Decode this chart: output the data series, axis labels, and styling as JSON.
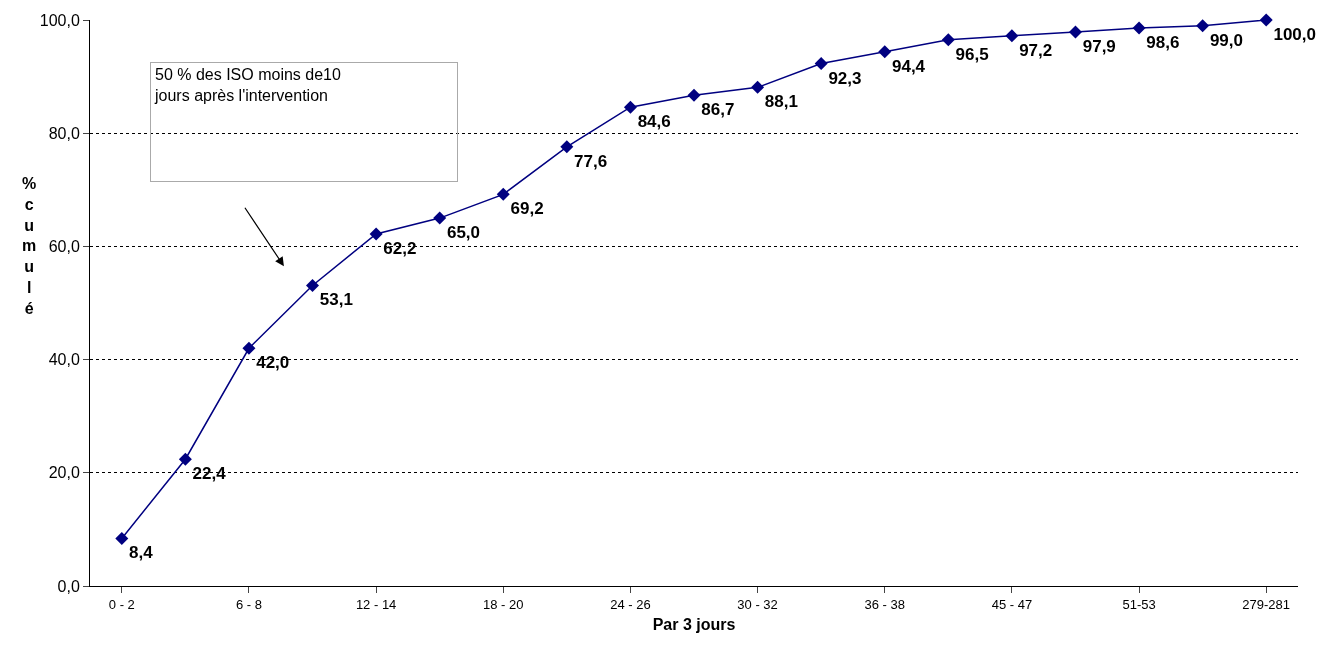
{
  "chart_data": {
    "type": "line",
    "xlabel": "Par 3 jours",
    "ylabel": "% cumulé",
    "categories": [
      "0 - 2",
      null,
      "6 - 8",
      null,
      "12 - 14",
      null,
      "18 - 20",
      null,
      "24 - 26",
      null,
      "30 - 32",
      null,
      "36 - 38",
      null,
      "45 - 47",
      null,
      "51-53",
      null,
      "279-281"
    ],
    "series": [
      {
        "color": "#000080",
        "values": [
          8.4,
          22.4,
          42.0,
          53.1,
          62.2,
          65.0,
          69.2,
          77.6,
          84.6,
          86.7,
          88.1,
          92.3,
          94.4,
          96.5,
          97.2,
          97.9,
          98.6,
          99.0,
          100.0
        ],
        "value_labels": [
          "8,4",
          "22,4",
          "42,0",
          "53,1",
          "62,2",
          "65,0",
          "69,2",
          "77,6",
          "84,6",
          "86,7",
          "88,1",
          "92,3",
          "94,4",
          "96,5",
          "97,2",
          "97,9",
          "98,6",
          "99,0",
          "100,0"
        ]
      }
    ],
    "ylim": [
      0,
      100
    ],
    "yticks": [
      {
        "value": 0,
        "label": "0,0"
      },
      {
        "value": 20,
        "label": "20,0"
      },
      {
        "value": 40,
        "label": "40,0"
      },
      {
        "value": 60,
        "label": "60,0"
      },
      {
        "value": 80,
        "label": "80,0"
      },
      {
        "value": 100,
        "label": "100,0"
      }
    ],
    "grid": "y",
    "marker": "diamond",
    "line_style": "solid",
    "legend": false,
    "annotations": [
      "50 % des ISO moins de10\njours après l'intervention"
    ]
  }
}
